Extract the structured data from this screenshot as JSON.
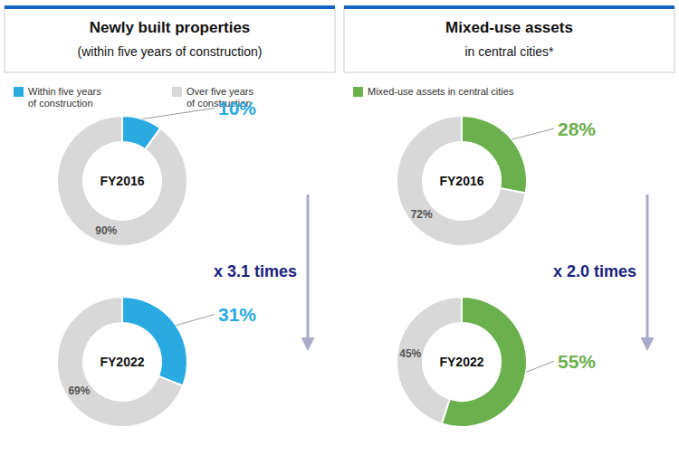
{
  "chart_data": [
    {
      "type": "pie",
      "title": "Newly built properties",
      "subtitle": "(within five years of construction)",
      "categories": [
        "Within five years\nof construction",
        "Over five years\nof construction"
      ],
      "colors": [
        "#29ABE2",
        "#D8D8D8"
      ],
      "series": [
        {
          "name": "FY2016",
          "values": [
            10,
            90
          ],
          "value_labels": [
            "10%",
            "90%"
          ]
        },
        {
          "name": "FY2022",
          "values": [
            31,
            69
          ],
          "value_labels": [
            "31%",
            "69%"
          ]
        }
      ],
      "data_labels": true,
      "legend": "top",
      "annotations": [
        "x 3.1 times"
      ]
    },
    {
      "type": "pie",
      "title": "Mixed-use assets",
      "subtitle": "in central cities*",
      "categories": [
        "Mixed-use assets in central cities",
        null
      ],
      "colors": [
        "#6AB04C",
        "#D8D8D8"
      ],
      "series": [
        {
          "name": "FY2016",
          "values": [
            28,
            72
          ],
          "value_labels": [
            "28%",
            "72%"
          ]
        },
        {
          "name": "FY2022",
          "values": [
            55,
            45
          ],
          "value_labels": [
            "55%",
            "45%"
          ]
        }
      ],
      "data_labels": true,
      "legend": "top",
      "annotations": [
        "x 2.0 times"
      ]
    }
  ]
}
